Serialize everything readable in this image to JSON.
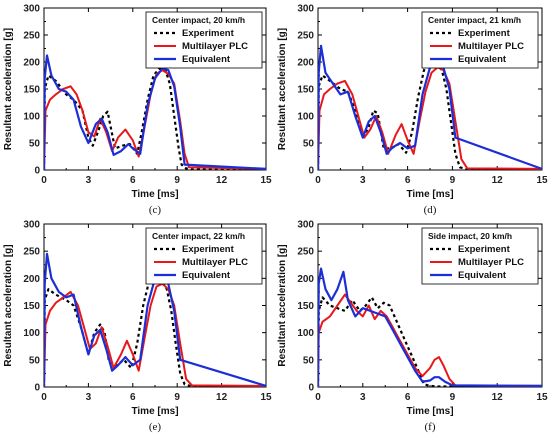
{
  "colors": {
    "experiment": "#000000",
    "multilayer": "#e8181a",
    "equivalent": "#1c2fd6",
    "frame": "#000000"
  },
  "chart_data": [
    {
      "type": "line",
      "panel_label": "(c)",
      "legend_title": "Center impact, 20 km/h",
      "xlabel": "Time [ms]",
      "ylabel": "Resultant acceleration [g]",
      "xlim": [
        0,
        15
      ],
      "ylim": [
        0,
        300
      ],
      "xticks": [
        "0",
        "3",
        "6",
        "9",
        "12",
        "15"
      ],
      "yticks": [
        "0",
        "50",
        "100",
        "150",
        "200",
        "250",
        "300"
      ],
      "legend": [
        "Experiment",
        "Multilayer PLC",
        "Equivalent"
      ],
      "series": [
        {
          "name": "Experiment",
          "x": [
            0,
            0.05,
            0.3,
            0.8,
            1.5,
            2.0,
            2.6,
            3.0,
            3.3,
            3.7,
            4.0,
            4.3,
            4.8,
            5.3,
            5.8,
            6.3,
            6.6,
            7.0,
            7.4,
            7.8,
            8.2,
            8.5,
            8.8,
            9.1,
            9.3,
            9.6,
            10,
            15
          ],
          "y": [
            0,
            150,
            175,
            165,
            140,
            130,
            110,
            60,
            45,
            75,
            100,
            108,
            40,
            45,
            48,
            30,
            70,
            130,
            175,
            188,
            185,
            160,
            100,
            40,
            10,
            3,
            1,
            1
          ]
        },
        {
          "name": "Multilayer PLC",
          "x": [
            0,
            0.1,
            0.4,
            0.8,
            1.3,
            1.8,
            2.2,
            2.6,
            3.0,
            3.4,
            3.8,
            4.2,
            4.6,
            5.0,
            5.5,
            6.0,
            6.4,
            6.8,
            7.2,
            7.6,
            8.0,
            8.4,
            8.8,
            9.2,
            9.5,
            9.8,
            15
          ],
          "y": [
            0,
            110,
            130,
            140,
            150,
            155,
            140,
            110,
            70,
            62,
            95,
            70,
            35,
            60,
            75,
            55,
            25,
            80,
            140,
            178,
            185,
            178,
            160,
            90,
            30,
            5,
            2
          ]
        },
        {
          "name": "Equivalent",
          "x": [
            0,
            0.05,
            0.2,
            0.5,
            1.0,
            1.5,
            2.0,
            2.5,
            3.0,
            3.5,
            3.9,
            4.3,
            4.7,
            5.2,
            5.7,
            6.0,
            6.5,
            7.0,
            7.5,
            8.0,
            8.4,
            8.8,
            9.2,
            9.5,
            15
          ],
          "y": [
            0,
            170,
            212,
            175,
            150,
            145,
            130,
            80,
            50,
            85,
            95,
            70,
            28,
            35,
            48,
            40,
            30,
            120,
            170,
            188,
            185,
            155,
            80,
            10,
            2
          ]
        }
      ]
    },
    {
      "type": "line",
      "panel_label": "(d)",
      "legend_title": "Center impact, 21 km/h",
      "xlabel": "Time [ms]",
      "ylabel": "Resultant acceleration [g]",
      "xlim": [
        0,
        15
      ],
      "ylim": [
        0,
        300
      ],
      "xticks": [
        "0",
        "3",
        "6",
        "9",
        "12",
        "15"
      ],
      "yticks": [
        "0",
        "50",
        "100",
        "150",
        "200",
        "250",
        "300"
      ],
      "legend": [
        "Experiment",
        "Multilayer PLC",
        "Equivalent"
      ],
      "series": [
        {
          "name": "Experiment",
          "x": [
            0,
            0.05,
            0.3,
            0.8,
            1.5,
            2.0,
            2.5,
            3.0,
            3.4,
            3.7,
            4.0,
            4.4,
            4.9,
            5.4,
            5.9,
            6.3,
            6.7,
            7.1,
            7.5,
            7.9,
            8.3,
            8.6,
            8.9,
            9.2,
            9.5,
            10,
            15
          ],
          "y": [
            0,
            155,
            175,
            165,
            150,
            145,
            110,
            60,
            80,
            110,
            105,
            40,
            40,
            48,
            32,
            70,
            135,
            185,
            200,
            198,
            185,
            150,
            90,
            30,
            5,
            1,
            1
          ]
        },
        {
          "name": "Multilayer PLC",
          "x": [
            0,
            0.1,
            0.4,
            0.8,
            1.3,
            1.8,
            2.3,
            2.7,
            3.1,
            3.5,
            3.9,
            4.3,
            4.7,
            5.2,
            5.6,
            6.0,
            6.4,
            6.8,
            7.2,
            7.6,
            8.0,
            8.4,
            8.8,
            9.2,
            9.6,
            10,
            15
          ],
          "y": [
            0,
            110,
            140,
            150,
            160,
            165,
            140,
            100,
            60,
            75,
            100,
            70,
            30,
            65,
            85,
            55,
            30,
            90,
            145,
            180,
            190,
            185,
            160,
            90,
            20,
            3,
            2
          ]
        },
        {
          "name": "Equivalent",
          "x": [
            0,
            0.05,
            0.2,
            0.5,
            1.0,
            1.5,
            2.0,
            2.5,
            3.0,
            3.4,
            3.8,
            4.2,
            4.6,
            5.0,
            5.5,
            6.0,
            6.5,
            7.0,
            7.5,
            8.0,
            8.4,
            8.8,
            9.2,
            15
          ],
          "y": [
            0,
            180,
            230,
            180,
            160,
            140,
            145,
            100,
            60,
            90,
            100,
            70,
            30,
            42,
            50,
            40,
            45,
            140,
            190,
            200,
            190,
            150,
            60,
            2
          ]
        }
      ]
    },
    {
      "type": "line",
      "panel_label": "(e)",
      "legend_title": "Center impact, 22 km/h",
      "xlabel": "Time [ms]",
      "ylabel": "Resultant acceleration [g]",
      "xlim": [
        0,
        15
      ],
      "ylim": [
        0,
        300
      ],
      "xticks": [
        "0",
        "3",
        "6",
        "9",
        "12",
        "15"
      ],
      "yticks": [
        "0",
        "50",
        "100",
        "150",
        "200",
        "250",
        "300"
      ],
      "legend": [
        "Experiment",
        "Multilayer PLC",
        "Equivalent"
      ],
      "series": [
        {
          "name": "Experiment",
          "x": [
            0,
            0.05,
            0.3,
            0.8,
            1.5,
            2.0,
            2.5,
            3.0,
            3.4,
            3.8,
            4.1,
            4.4,
            4.9,
            5.4,
            5.9,
            6.3,
            6.7,
            7.1,
            7.5,
            7.9,
            8.3,
            8.6,
            8.9,
            9.2,
            9.5,
            10,
            15
          ],
          "y": [
            0,
            160,
            180,
            170,
            160,
            150,
            110,
            60,
            100,
            115,
            100,
            45,
            40,
            50,
            35,
            80,
            150,
            195,
            208,
            200,
            180,
            140,
            80,
            25,
            5,
            1,
            1
          ]
        },
        {
          "name": "Multilayer PLC",
          "x": [
            0,
            0.1,
            0.4,
            0.8,
            1.3,
            1.8,
            2.3,
            2.7,
            3.1,
            3.5,
            3.9,
            4.3,
            4.7,
            5.2,
            5.6,
            6.0,
            6.4,
            6.8,
            7.2,
            7.6,
            8.0,
            8.4,
            8.8,
            9.2,
            9.6,
            10,
            15
          ],
          "y": [
            0,
            115,
            140,
            155,
            165,
            175,
            150,
            110,
            70,
            80,
            110,
            75,
            35,
            60,
            85,
            60,
            30,
            90,
            150,
            185,
            190,
            180,
            150,
            80,
            15,
            3,
            2
          ]
        },
        {
          "name": "Equivalent",
          "x": [
            0,
            0.05,
            0.2,
            0.5,
            1.0,
            1.5,
            2.0,
            2.5,
            3.0,
            3.4,
            3.8,
            4.2,
            4.6,
            5.0,
            5.5,
            6.0,
            6.5,
            7.0,
            7.5,
            8.0,
            8.4,
            8.8,
            9.2,
            15
          ],
          "y": [
            0,
            190,
            245,
            200,
            175,
            165,
            170,
            110,
            60,
            95,
            105,
            70,
            30,
            40,
            55,
            40,
            50,
            150,
            200,
            205,
            190,
            140,
            50,
            2
          ]
        }
      ]
    },
    {
      "type": "line",
      "panel_label": "(f)",
      "legend_title": "Side impact, 20 km/h",
      "xlabel": "Time [ms]",
      "ylabel": "Resultant acceleration [g]",
      "xlim": [
        0,
        15
      ],
      "ylim": [
        0,
        300
      ],
      "xticks": [
        "0",
        "3",
        "6",
        "9",
        "12",
        "15"
      ],
      "yticks": [
        "0",
        "50",
        "100",
        "150",
        "200",
        "250",
        "300"
      ],
      "legend": [
        "Experiment",
        "Multilayer PLC",
        "Equivalent"
      ],
      "series": [
        {
          "name": "Experiment",
          "x": [
            0,
            0.05,
            0.3,
            0.8,
            1.3,
            1.8,
            2.3,
            2.8,
            3.2,
            3.6,
            4.0,
            4.4,
            4.8,
            5.2,
            5.6,
            6.0,
            6.4,
            6.8,
            7.1,
            7.5,
            8.0,
            15
          ],
          "y": [
            0,
            140,
            165,
            150,
            145,
            140,
            160,
            140,
            150,
            165,
            145,
            155,
            150,
            125,
            100,
            75,
            50,
            25,
            5,
            2,
            1,
            1
          ]
        },
        {
          "name": "Multilayer PLC",
          "x": [
            0,
            0.05,
            0.3,
            0.8,
            1.3,
            1.8,
            2.2,
            2.6,
            3.0,
            3.4,
            3.8,
            4.2,
            4.6,
            5.0,
            5.5,
            6.0,
            6.5,
            7.0,
            7.5,
            7.8,
            8.1,
            8.4,
            8.8,
            9.2,
            15
          ],
          "y": [
            0,
            100,
            120,
            130,
            150,
            170,
            155,
            140,
            130,
            150,
            125,
            140,
            130,
            110,
            85,
            60,
            35,
            20,
            35,
            50,
            55,
            40,
            15,
            3,
            2
          ]
        },
        {
          "name": "Equivalent",
          "x": [
            0,
            0.05,
            0.2,
            0.5,
            0.9,
            1.3,
            1.7,
            2.0,
            2.5,
            3.0,
            3.5,
            4.0,
            4.5,
            5.0,
            5.5,
            6.0,
            6.5,
            7.0,
            7.5,
            7.8,
            8.1,
            8.5,
            9.0,
            15
          ],
          "y": [
            0,
            190,
            218,
            180,
            160,
            180,
            212,
            160,
            130,
            145,
            140,
            135,
            130,
            105,
            80,
            55,
            30,
            10,
            12,
            18,
            18,
            10,
            3,
            2
          ]
        }
      ]
    }
  ]
}
